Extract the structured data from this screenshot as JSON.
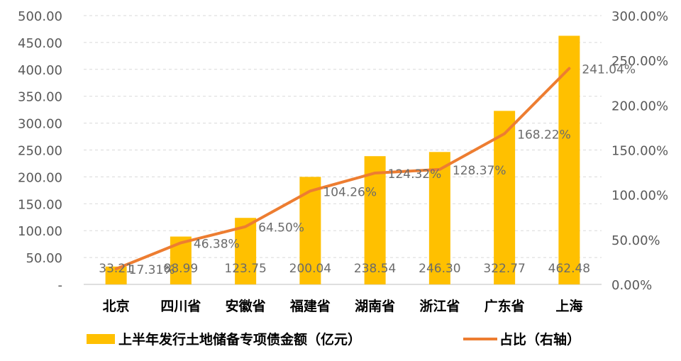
{
  "chart_data": {
    "type": "bar",
    "categories": [
      "北京",
      "四川省",
      "安徽省",
      "福建省",
      "湖南省",
      "浙江省",
      "广东省",
      "上海"
    ],
    "series": [
      {
        "name": "上半年发行土地储备专项债金额（亿元）",
        "kind": "bar",
        "axis": "left",
        "values": [
          33.21,
          88.99,
          123.75,
          200.04,
          238.54,
          246.3,
          322.77,
          462.48
        ],
        "labels": [
          "33.21",
          "88.99",
          "123.75",
          "200.04",
          "238.54",
          "246.30",
          "322.77",
          "462.48"
        ]
      },
      {
        "name": "占比（右轴）",
        "kind": "line",
        "axis": "right",
        "values": [
          17.31,
          46.38,
          64.5,
          104.26,
          124.32,
          128.37,
          168.22,
          241.04
        ],
        "labels": [
          "17.31%",
          "46.38%",
          "64.50%",
          "104.26%",
          "124.32%",
          "128.37%",
          "168.22%",
          "241.04%"
        ]
      }
    ],
    "y_left": {
      "ylim": [
        0,
        500
      ],
      "ticks": [
        "-",
        "50.00",
        "100.00",
        "150.00",
        "200.00",
        "250.00",
        "300.00",
        "350.00",
        "400.00",
        "450.00",
        "500.00"
      ]
    },
    "y_right": {
      "ylim": [
        0,
        300
      ],
      "ticks": [
        "0.00%",
        "50.00%",
        "100.00%",
        "150.00%",
        "200.00%",
        "250.00%",
        "300.00%"
      ]
    },
    "grid": true,
    "legend": "bottom",
    "colors": {
      "bar": "#FFC000",
      "line": "#ED7D31",
      "grid": "#D9D9D9",
      "axis": "#BFBFBF"
    }
  }
}
